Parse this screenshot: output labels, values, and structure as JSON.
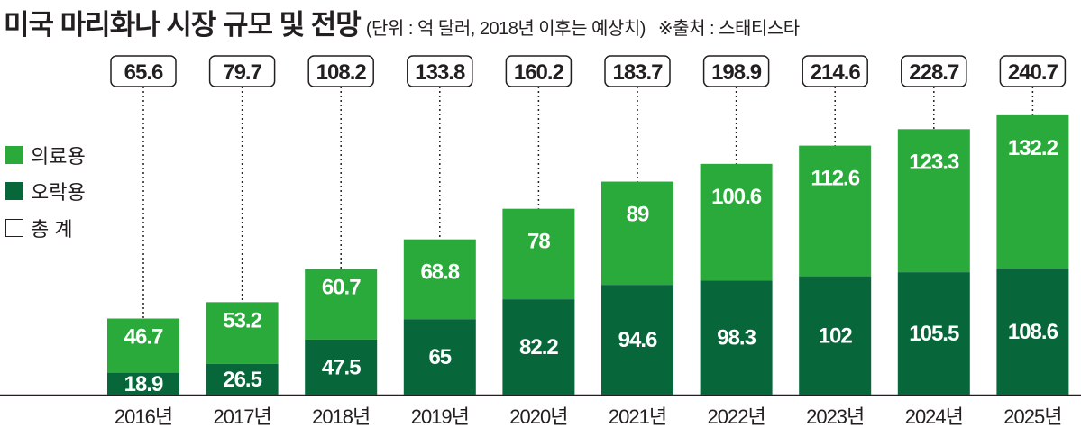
{
  "chart_data": {
    "type": "bar",
    "stacked": true,
    "title": "미국 마리화나 시장 규모 및 전망",
    "subtitle": "(단위 : 억 달러, 2018년 이후는 예상치)",
    "source": "※출처 : 스태티스타",
    "categories": [
      "2016년",
      "2017년",
      "2018년",
      "2019년",
      "2020년",
      "2021년",
      "2022년",
      "2023년",
      "2024년",
      "2025년"
    ],
    "series": [
      {
        "name": "오락용",
        "color": "#07673a",
        "values": [
          18.9,
          26.5,
          47.5,
          65,
          82.2,
          94.6,
          98.3,
          102,
          105.5,
          108.6
        ]
      },
      {
        "name": "의료용",
        "color": "#29aa3a",
        "values": [
          46.7,
          53.2,
          60.7,
          68.8,
          78,
          89,
          100.6,
          112.6,
          123.3,
          132.2
        ]
      }
    ],
    "totals_label": "총 계",
    "totals": [
      "65.6",
      "79.7",
      "108.2",
      "133.8",
      "160.2",
      "183.7",
      "198.9",
      "214.6",
      "228.7",
      "240.7"
    ],
    "labels_recreational": [
      "18.9",
      "26.5",
      "47.5",
      "65",
      "82.2",
      "94.6",
      "98.3",
      "102",
      "105.5",
      "108.6"
    ],
    "labels_medical": [
      "46.7",
      "53.2",
      "60.7",
      "68.8",
      "78",
      "89",
      "100.6",
      "112.6",
      "123.3",
      "132.2"
    ],
    "ylim": [
      0,
      240.7
    ],
    "legend": [
      "의료용",
      "오락용",
      "총 계"
    ],
    "legend_position": "left"
  }
}
